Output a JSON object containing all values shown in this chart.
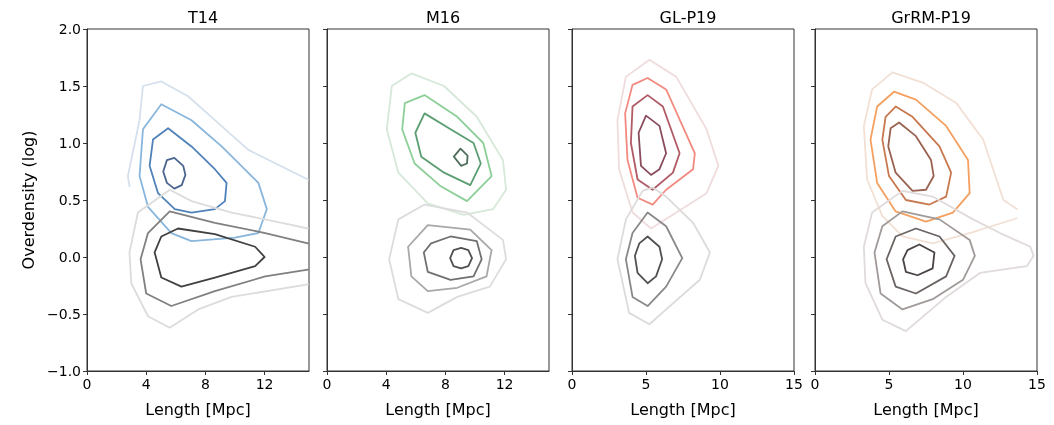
{
  "chart_data": [
    {
      "type": "line",
      "title": "T14",
      "xlabel": "Length [Mpc]",
      "ylabel": "Overdensity (log)",
      "xlim": [
        0,
        15
      ],
      "xticks": [
        0,
        4,
        8,
        12
      ],
      "ylim": [
        -1,
        2
      ],
      "yticks": [
        {
          "value": -1,
          "label": "−1.0"
        },
        {
          "value": -0.5,
          "label": "−0.5"
        },
        {
          "value": 0,
          "label": "0.0"
        },
        {
          "value": 0.5,
          "label": "0.5"
        },
        {
          "value": 1,
          "label": "1.0"
        },
        {
          "value": 1.5,
          "label": "1.5"
        },
        {
          "value": 2,
          "label": "2.0"
        }
      ],
      "grid": false,
      "marker": "none",
      "line_style": "solid",
      "series": [
        {
          "color": "#d5e0ec",
          "x": [
            14.93,
            10.9,
            8.64,
            6.83,
            5.02,
            3.78,
            3.55,
            2.76,
            2.87
          ],
          "values": [
            0.68,
            0.94,
            1.2,
            1.41,
            1.54,
            1.5,
            1.2,
            0.71,
            0.62
          ]
        },
        {
          "color": "#89b6dc",
          "x": [
            3.55,
            3.78,
            5.02,
            7.06,
            9.1,
            11.58,
            12.15,
            null,
            3.55,
            4.12,
            5.7,
            7.06,
            10.0,
            11.58,
            12.15
          ],
          "values": [
            0.71,
            1.12,
            1.34,
            1.2,
            0.97,
            0.65,
            0.42,
            null,
            0.71,
            0.44,
            0.21,
            0.14,
            0.17,
            0.21,
            0.42
          ]
        },
        {
          "color": "#5082ba",
          "x": [
            4.23,
            4.46,
            5.48,
            7.06,
            8.64,
            9.43,
            null,
            4.23,
            4.8,
            5.93,
            7.06,
            8.64,
            9.32,
            9.43
          ],
          "values": [
            0.8,
            1.03,
            1.13,
            0.97,
            0.77,
            0.65,
            null,
            0.8,
            0.56,
            0.42,
            0.39,
            0.42,
            0.49,
            0.65
          ]
        },
        {
          "color": "#4a6690",
          "x": [
            5.15,
            5.4,
            5.9,
            6.5,
            6.65,
            null,
            5.15,
            5.4,
            5.9,
            6.4,
            6.65
          ],
          "values": [
            0.75,
            0.85,
            0.87,
            0.8,
            0.72,
            null,
            0.75,
            0.65,
            0.6,
            0.63,
            0.72
          ]
        },
        {
          "color": "#dcdcdc",
          "x": [
            14.93,
            13.17,
            9.77,
            7.06,
            5.59,
            3.44,
            2.87,
            2.99,
            4.12,
            5.59,
            7.51,
            9.77,
            14.93
          ],
          "values": [
            0.25,
            0.3,
            0.39,
            0.49,
            0.59,
            0.39,
            0.04,
            -0.23,
            -0.52,
            -0.62,
            -0.46,
            -0.35,
            -0.24
          ]
        },
        {
          "color": "#808080",
          "x": [
            14.93,
            12.04,
            8.64,
            5.59,
            4.12,
            3.62,
            4.0,
            5.7,
            8.64,
            12.04,
            14.93
          ],
          "values": [
            0.12,
            0.21,
            0.3,
            0.4,
            0.21,
            -0.02,
            -0.32,
            -0.43,
            -0.3,
            -0.17,
            -0.11
          ]
        },
        {
          "color": "#404040",
          "x": [
            4.57,
            5.02,
            6.15,
            8.64,
            11.36,
            12.0,
            null,
            4.57,
            5.02,
            6.38,
            8.64,
            11.36,
            12.0
          ],
          "values": [
            0.04,
            0.18,
            0.25,
            0.2,
            0.09,
            0.0,
            null,
            0.04,
            -0.18,
            -0.26,
            -0.18,
            -0.08,
            0.0
          ]
        }
      ]
    },
    {
      "type": "line",
      "title": "M16",
      "xlabel": "Length [Mpc]",
      "xlim": [
        0,
        15
      ],
      "xticks": [
        0,
        4,
        8,
        12
      ],
      "ylim": [
        -1,
        2
      ],
      "yticks": [
        {
          "value": -1,
          "label": null
        },
        {
          "value": -0.5,
          "label": null
        },
        {
          "value": 0,
          "label": null
        },
        {
          "value": 0.5,
          "label": null
        },
        {
          "value": 1,
          "label": null
        },
        {
          "value": 1.5,
          "label": null
        },
        {
          "value": 2,
          "label": null
        }
      ],
      "tick_labels": "x",
      "grid": false,
      "marker": "none",
      "line_style": "solid",
      "series": [
        {
          "color": "#d6e8d8",
          "x": [
            4.04,
            4.38,
            5.7,
            7.91,
            10.12,
            11.89,
            12.1,
            null,
            4.04,
            4.82,
            6.81,
            9.24,
            11.23,
            12.1
          ],
          "values": [
            1.12,
            1.5,
            1.61,
            1.5,
            1.23,
            0.85,
            0.59,
            null,
            1.12,
            0.74,
            0.47,
            0.37,
            0.42,
            0.59
          ]
        },
        {
          "color": "#8ccf98",
          "x": [
            5.08,
            5.26,
            6.59,
            8.8,
            10.56,
            11.12,
            null,
            5.08,
            5.92,
            7.69,
            9.46,
            11.12
          ],
          "values": [
            1.12,
            1.35,
            1.42,
            1.23,
            1.0,
            0.71,
            null,
            1.12,
            0.82,
            0.62,
            0.49,
            0.71
          ]
        },
        {
          "color": "#5a9e72",
          "x": [
            5.97,
            6.59,
            8.35,
            9.9,
            10.39,
            null,
            5.97,
            6.37,
            7.91,
            9.68,
            10.39
          ],
          "values": [
            1.09,
            1.26,
            1.12,
            1.0,
            0.82,
            null,
            1.09,
            0.88,
            0.74,
            0.63,
            0.82
          ]
        },
        {
          "color": "#4e6e5a",
          "x": [
            8.57,
            9.02,
            9.5,
            null,
            8.57,
            9.06,
            9.46,
            9.5
          ],
          "values": [
            0.88,
            0.95,
            0.89,
            null,
            0.88,
            0.8,
            0.82,
            0.89
          ]
        },
        {
          "color": "#dcdcdc",
          "x": [
            4.2,
            4.82,
            6.59,
            9.46,
            11.89,
            12.1,
            null,
            4.2,
            4.82,
            6.81,
            8.8,
            11.0,
            12.1
          ],
          "values": [
            -0.02,
            0.33,
            0.46,
            0.39,
            0.15,
            -0.02,
            null,
            -0.02,
            -0.37,
            -0.49,
            -0.35,
            -0.26,
            -0.02
          ]
        },
        {
          "color": "#a8a8a8",
          "x": [
            5.48,
            6.81,
            9.68,
            11.12,
            null,
            5.48,
            5.7,
            6.81,
            8.8,
            10.78,
            11.12
          ],
          "values": [
            0.09,
            0.28,
            0.24,
            0.06,
            null,
            0.09,
            -0.17,
            -0.3,
            -0.27,
            -0.17,
            0.06
          ]
        },
        {
          "color": "#707070",
          "x": [
            6.54,
            7.03,
            8.35,
            10.12,
            10.45,
            null,
            6.54,
            6.81,
            8.35,
            9.9,
            10.45
          ],
          "values": [
            0.04,
            0.12,
            0.18,
            0.14,
            -0.02,
            null,
            0.04,
            -0.13,
            -0.2,
            -0.17,
            -0.02
          ]
        },
        {
          "color": "#505050",
          "x": [
            8.32,
            8.55,
            9.06,
            9.55,
            9.8,
            null,
            8.32,
            8.55,
            9.06,
            9.55,
            9.8
          ],
          "values": [
            -0.01,
            0.06,
            0.08,
            0.06,
            -0.01,
            null,
            -0.01,
            -0.08,
            -0.1,
            -0.08,
            -0.01
          ]
        }
      ]
    },
    {
      "type": "line",
      "title": "GL-P19",
      "xlabel": "Length [Mpc]",
      "xlim": [
        0,
        15
      ],
      "xticks": [
        0,
        5,
        10,
        15
      ],
      "ylim": [
        -1,
        2
      ],
      "yticks": [
        {
          "value": -1,
          "label": null
        },
        {
          "value": -0.5,
          "label": null
        },
        {
          "value": 0,
          "label": null
        },
        {
          "value": 0.5,
          "label": null
        },
        {
          "value": 1,
          "label": null
        },
        {
          "value": 1.5,
          "label": null
        },
        {
          "value": 2,
          "label": null
        }
      ],
      "tick_labels": "x",
      "grid": false,
      "marker": "none",
      "line_style": "solid",
      "series": [
        {
          "color": "#f0dcdc",
          "x": [
            3.07,
            3.64,
            5.23,
            7.05,
            9.09,
            9.89,
            null,
            3.07,
            3.18,
            4.09,
            5.34,
            7.05,
            9.09,
            9.89
          ],
          "values": [
            1.2,
            1.58,
            1.73,
            1.58,
            1.12,
            0.8,
            null,
            1.2,
            0.77,
            0.39,
            0.25,
            0.39,
            0.56,
            0.8
          ]
        },
        {
          "color": "#f28a80",
          "x": [
            3.59,
            4.09,
            5.11,
            6.36,
            8.3,
            null,
            3.59,
            3.75,
            4.43,
            5.45,
            6.36,
            8.18,
            8.3
          ],
          "values": [
            1.26,
            1.51,
            1.57,
            1.47,
            0.91,
            null,
            1.26,
            0.85,
            0.52,
            0.46,
            0.59,
            0.77,
            0.91
          ]
        },
        {
          "color": "#b05a66",
          "x": [
            3.98,
            4.09,
            5.11,
            6.14,
            7.27,
            null,
            3.98,
            4.43,
            5.45,
            6.82,
            7.27
          ],
          "values": [
            1.0,
            1.32,
            1.42,
            1.32,
            0.91,
            null,
            1.0,
            0.68,
            0.59,
            0.74,
            0.91
          ]
        },
        {
          "color": "#8a4c5c",
          "x": [
            4.5,
            5.0,
            5.91,
            6.36,
            null,
            4.5,
            4.66,
            5.34,
            5.91,
            6.36
          ],
          "values": [
            1.09,
            1.24,
            1.15,
            0.91,
            null,
            1.09,
            0.8,
            0.72,
            0.77,
            0.91
          ]
        },
        {
          "color": "#dedada",
          "x": [
            3.07,
            3.64,
            4.77,
            5.45,
            6.36,
            8.18,
            9.32,
            null,
            3.07,
            3.86,
            5.23,
            6.36,
            8.64,
            9.32
          ],
          "values": [
            -0.02,
            0.33,
            0.58,
            0.61,
            0.53,
            0.3,
            0.04,
            null,
            -0.02,
            -0.49,
            -0.59,
            -0.46,
            -0.2,
            0.04
          ]
        },
        {
          "color": "#8a8888",
          "x": [
            3.64,
            4.09,
            5.11,
            6.36,
            7.45,
            null,
            3.64,
            4.09,
            5.11,
            6.36,
            7.45
          ],
          "values": [
            -0.02,
            0.21,
            0.39,
            0.27,
            -0.01,
            null,
            -0.02,
            -0.35,
            -0.43,
            -0.26,
            -0.01
          ]
        },
        {
          "color": "#555050",
          "x": [
            4.25,
            4.55,
            5.11,
            5.91,
            6.09,
            null,
            4.25,
            4.43,
            5.11,
            5.68,
            6.09
          ],
          "values": [
            0.01,
            0.12,
            0.18,
            0.09,
            -0.02,
            null,
            0.01,
            -0.14,
            -0.23,
            -0.17,
            -0.02
          ]
        }
      ]
    },
    {
      "type": "line",
      "title": "GrRM-P19",
      "xlabel": "Length [Mpc]",
      "xlim": [
        0,
        15
      ],
      "xticks": [
        0,
        5,
        10,
        15
      ],
      "ylim": [
        -1,
        2
      ],
      "yticks": [
        {
          "value": -1,
          "label": null
        },
        {
          "value": -0.5,
          "label": null
        },
        {
          "value": 0,
          "label": null
        },
        {
          "value": 0.5,
          "label": null
        },
        {
          "value": 1,
          "label": null
        },
        {
          "value": 1.5,
          "label": null
        },
        {
          "value": 2,
          "label": null
        }
      ],
      "tick_labels": "x",
      "grid": false,
      "marker": "none",
      "line_style": "solid",
      "series": [
        {
          "color": "#f2e0d4",
          "x": [
            3.3,
            3.86,
            5.23,
            7.27,
            9.55,
            11.36,
            12.73,
            13.64,
            null,
            3.3,
            3.52,
            4.55,
            5.91,
            7.95,
            10.45,
            13.64
          ],
          "values": [
            1.15,
            1.47,
            1.62,
            1.53,
            1.35,
            1.03,
            0.5,
            0.42,
            null,
            1.15,
            0.68,
            0.36,
            0.18,
            0.12,
            0.21,
            0.34
          ]
        },
        {
          "color": "#f4a060",
          "x": [
            3.75,
            4.2,
            5.34,
            6.82,
            8.86,
            10.34,
            10.45,
            null,
            3.75,
            4.2,
            5.45,
            7.5,
            9.32,
            10.45
          ],
          "values": [
            1.03,
            1.32,
            1.45,
            1.38,
            1.15,
            0.85,
            0.56,
            null,
            1.03,
            0.65,
            0.4,
            0.31,
            0.39,
            0.56
          ]
        },
        {
          "color": "#c8784e",
          "x": [
            4.55,
            4.77,
            5.45,
            6.59,
            8.41,
            9.2,
            null,
            4.55,
            5.0,
            6.14,
            7.73,
            8.86,
            9.2
          ],
          "values": [
            1.03,
            1.23,
            1.32,
            1.23,
            0.97,
            0.74,
            null,
            1.03,
            0.71,
            0.5,
            0.46,
            0.53,
            0.74
          ]
        },
        {
          "color": "#9a6250",
          "x": [
            4.95,
            5.11,
            5.68,
            6.82,
            7.84,
            8.02,
            null,
            4.95,
            5.45,
            6.59,
            7.5,
            8.02
          ],
          "values": [
            0.97,
            1.13,
            1.18,
            1.06,
            0.85,
            0.71,
            null,
            0.97,
            0.74,
            0.58,
            0.59,
            0.71
          ]
        },
        {
          "color": "#e0dada",
          "x": [
            3.3,
            3.86,
            5.91,
            7.95,
            10.68,
            12.5,
            14.55,
            14.77,
            null,
            3.3,
            3.41,
            4.55,
            6.14,
            8.86,
            11.14,
            14.32,
            14.77
          ],
          "values": [
            0.09,
            0.39,
            0.58,
            0.53,
            0.33,
            0.21,
            0.09,
            0.01,
            null,
            0.09,
            -0.23,
            -0.55,
            -0.65,
            -0.35,
            -0.14,
            -0.08,
            0.01
          ]
        },
        {
          "color": "#a09a98",
          "x": [
            4.02,
            4.55,
            5.91,
            8.41,
            10.45,
            10.8,
            null,
            4.02,
            4.43,
            5.91,
            7.95,
            10.0,
            10.8
          ],
          "values": [
            0.04,
            0.27,
            0.4,
            0.33,
            0.15,
            0.01,
            null,
            0.04,
            -0.32,
            -0.46,
            -0.37,
            -0.2,
            0.01
          ]
        },
        {
          "color": "#6a6462",
          "x": [
            4.84,
            5.45,
            6.82,
            8.41,
            9.43,
            null,
            4.84,
            5.45,
            6.82,
            8.86,
            9.43
          ],
          "values": [
            -0.02,
            0.18,
            0.25,
            0.18,
            0.01,
            null,
            -0.02,
            -0.26,
            -0.32,
            -0.17,
            0.01
          ]
        },
        {
          "color": "#4a4444",
          "x": [
            5.95,
            6.25,
            7.05,
            8.07,
            null,
            5.95,
            6.14,
            6.93,
            7.95,
            8.07
          ],
          "values": [
            -0.02,
            0.06,
            0.11,
            0.04,
            null,
            -0.02,
            -0.13,
            -0.16,
            -0.1,
            0.04
          ]
        }
      ]
    }
  ]
}
